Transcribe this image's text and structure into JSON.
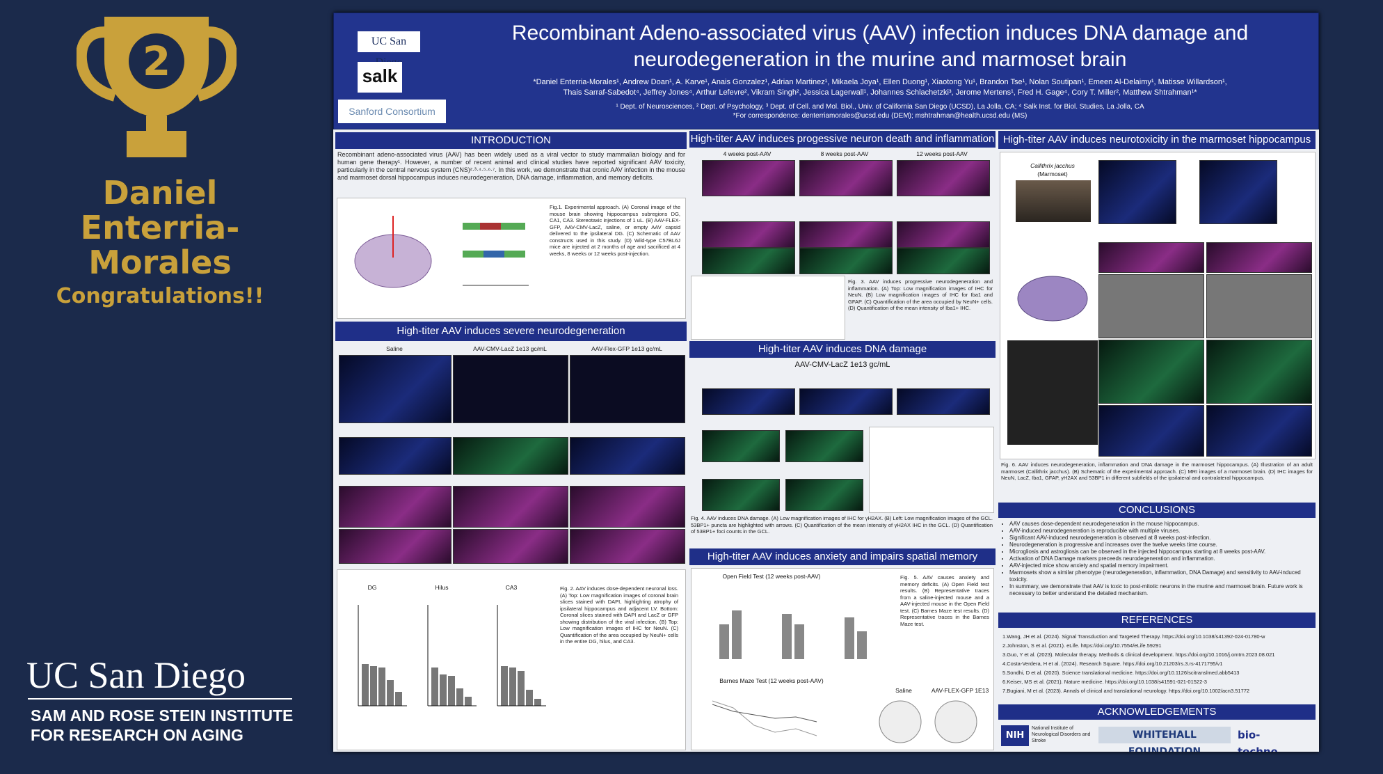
{
  "slide": {
    "place_number": "2",
    "winner_name_lines": [
      "Daniel Enterria-",
      "Morales"
    ],
    "message": "Congratulations!!",
    "institution_logo": "UC San Diego",
    "institute_name_line1": "SAM AND ROSE STEIN INSTITUTE",
    "institute_name_line2": "FOR RESEARCH ON AGING"
  },
  "poster": {
    "logos": [
      "UC San Diego",
      "salk",
      "Sanford Consortium"
    ],
    "title_line1": "Recombinant Adeno-associated virus (AAV) infection induces DNA damage and",
    "title_line2": "neurodegeneration in the murine and marmoset brain",
    "authors": [
      "*Daniel Enterria-Morales¹, Andrew Doan¹, A. Karve¹, Anais Gonzalez¹, Adrian Martinez¹, Mikaela Joya¹, Ellen Duong¹, Xiaotong Yu¹, Brandon Tse¹, Nolan Soutipan¹, Emeen Al-Delaimy¹, Matisse Willardson¹,",
      "Thais Sarraf-Sabedot⁴, Jeffrey Jones⁴, Arthur Lefevre², Vikram Singh², Jessica Lagerwall¹, Johannes Schlachetzki³, Jerome Mertens¹, Fred H. Gage⁴, Cory T. Miller², Matthew Shtrahman¹*"
    ],
    "affiliations": [
      "¹ Dept. of Neurosciences, ² Dept. of Psychology, ³ Dept. of Cell. and Mol. Biol., Univ. of California San Diego (UCSD), La Jolla, CA; ⁴ Salk Inst. for Biol. Studies, La Jolla, CA",
      "*For correspondence: denterriamorales@ucsd.edu (DEM); mshtrahman@health.ucsd.edu (MS)"
    ],
    "introduction": {
      "heading": "INTRODUCTION",
      "text": "Recombinant adeno-associated virus (AAV) has been widely used as a viral vector to study mammalian biology and for human gene therapy¹. However, a number of recent animal and clinical studies have reported significant AAV toxicity, particularly in the central nervous system (CNS)²·³·⁴·⁵·⁶·⁷. In this work, we demonstrate that cronic AAV infection in the mouse and marmoset dorsal hippocampus induces neurodegeneration, DNA damage, inflammation, and memory deficits.",
      "caption": "Fig.1. Experimental approach. (A) Coronal image of the mouse brain showing hippocampus subregions DG, CA1, CA3. Stereotaxic injections of 1 uL. (B) AAV-FLEX-GFP, AAV-CMV-LacZ, saline, or empty AAV capsid delivered to the ipsilateral DG. (C) Schematic of AAV constructs used in this study. (D) Wild-type C57BL6J mice are injected at 2 months of age and sacrificed at 4 weeks, 8 weeks or 12 weeks post-injection."
    },
    "neurodegeneration": {
      "heading": "High-titer AAV induces severe neurodegeneration",
      "conditions": [
        "Saline",
        "AAV-CMV-LacZ 1e13 gc/mL",
        "AAV-Flex-GFP 1e13 gc/mL"
      ],
      "regions": [
        "DG",
        "Hilus",
        "CA3"
      ],
      "caption": "Fig. 2. AAV induces dose-dependent neuronal loss. (A) Top: Low magnification images of coronal brain slices stained with DAPI, highlighting atrophy of ipsilateral hippocampus and adjacent LV. Bottom: Coronal slices stained with DAPI and LacZ or GFP showing distribution of the viral infection. (B) Top: Low magnification images of IHC for NeuN. (C) Quantification of the area occupied by NeuN+ cells in the entire DG, hilus, and CA3."
    },
    "neuron_death": {
      "heading": "High-titer AAV induces progessive neuron death and inflammation",
      "timepoints": [
        "4 weeks post-AAV",
        "8 weeks post-AAV",
        "12 weeks post-AAV"
      ],
      "caption": "Fig. 3. AAV induces progressive neurodegeneration and inflammation. (A) Top: Low magnification images of IHC for NeuN. (B) Low magnification images of IHC for Iba1 and GFAP. (C) Quantification of the area occupied by NeuN+ cells. (D) Quantification of the mean intensity of Iba1+ IHC."
    },
    "dna_damage": {
      "heading": "High-titer AAV induces DNA damage",
      "subheading": "AAV-CMV-LacZ 1e13 gc/mL",
      "caption": "Fig. 4. AAV induces DNA damage. (A) Low magnification images of IHC for γH2AX. (B) Left: Low magnification images of the GCL. 53BP1+ puncta are highlighted with arrows. (C) Quantification of the mean intensity of γH2AX IHC in the GCL. (D) Quantification of 53BP1+ foci counts in the GCL."
    },
    "behavior": {
      "heading": "High-titer AAV induces anxiety and impairs spatial memory",
      "open_field": "Open Field Test (12 weeks post-AAV)",
      "barnes_maze": "Barnes Maze Test (12 weeks post-AAV)",
      "caption": "Fig. 5. AAV causes anxiety and memory deficits. (A) Open Field test results. (B) Representative traces from a saline-injected mouse and a AAV-injected mouse in the Open Field test. (C) Barnes Maze test results. (D) Representative traces in the Barnes Maze test.",
      "trace_labels": [
        "Saline",
        "AAV-FLEX-GFP 1E13"
      ]
    },
    "marmoset": {
      "heading": "High-titer AAV induces neurotoxicity in the marmoset hippocampus",
      "species": "Callithrix jacchus",
      "common_name": "(Marmoset)",
      "caption": "Fig. 6. AAV induces neurodegeneration, inflammation and DNA damage in the marmoset hippocampus. (A) Illustration of an adult marmoset (Callithrix jacchus). (B) Schematic of the experimental approach. (C) MRI images of a marmoset brain. (D) IHC images for NeuN, LacZ, Iba1, GFAP, γH2AX and 53BP1 in different subfields of the ipsilateral and contralateral hippocampus."
    },
    "conclusions": {
      "heading": "CONCLUSIONS",
      "items": [
        "AAV causes dose-dependent neurodegeneration in the mouse hippocampus.",
        "AAV-induced neurodegeneration is reproducible with multiple viruses.",
        "Significant AAV-induced neurodegeneration is observed at 8 weeks post-infection.",
        "Neurodegeneration is progressive and increases over the twelve weeks time course.",
        "Microgliosis and astrogliosis can be observed in the injected hippocampus starting at 8 weeks post-AAV.",
        "Activation of DNA Damage markers preceeds neurodegeneration and inflammation.",
        "AAV-injected mice show anxiety and spatial memory impairment.",
        "Marmosets show a similar phenotype (neurodegeneration, inflammation, DNA Damage) and sensitivity to AAV-induced toxicity.",
        "In summary, we demonstrate that AAV is toxic to post-mitotic neurons in the murine and marmoset brain. Future work is necessary to better understand the detailed mechanism."
      ]
    },
    "references": {
      "heading": "REFERENCES",
      "items": [
        "1.Wang, JH et al. (2024). Signal Transduction and Targeted Therapy. https://doi.org/10.1038/s41392-024-01780-w",
        "2.Johnston, S et al. (2021). eLife. https://doi.org/10.7554/eLife.59291",
        "3.Guo, Y et al. (2023). Molecular therapy. Methods & clinical development. https://doi.org/10.1016/j.omtm.2023.08.021",
        "4.Costa-Verdera, H et al. (2024). Research Square. https://doi.org/10.21203/rs.3.rs-4171795/v1",
        "5.Sondhi, D et al. (2020). Science translational medicine. https://doi.org/10.1126/scitranslmed.abb5413",
        "6.Keiser, MS et al. (2021). Nature medicine. https://doi.org/10.1038/s41591-021-01522-3",
        "7.Bugiani, M et al. (2023). Annals of clinical and translational neurology. https://doi.org/10.1002/acn3.51772"
      ]
    },
    "acknowledgements": {
      "heading": "ACKNOWLEDGEMENTS",
      "sponsors": [
        "NIH",
        "National Institute of Neurological Disorders and Stroke",
        "WHITEHALL FOUNDATION",
        "bio-techne"
      ]
    }
  }
}
